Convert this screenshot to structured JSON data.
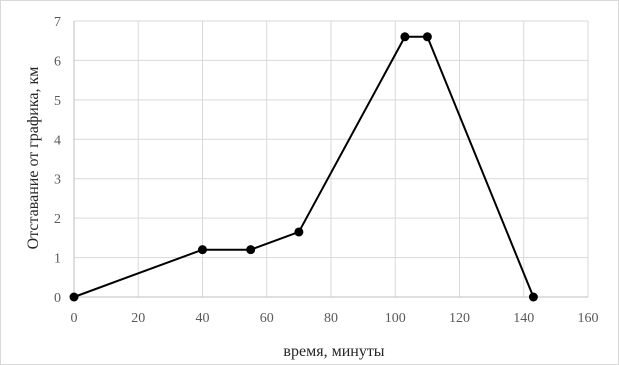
{
  "chart_data": {
    "type": "line",
    "title": "",
    "xlabel": "время, минуты",
    "ylabel": "Отставание  от графика,  км",
    "xlim": [
      0,
      160
    ],
    "ylim": [
      0,
      7
    ],
    "x_ticks": [
      "0",
      "20",
      "40",
      "60",
      "80",
      "100",
      "120",
      "140",
      "160"
    ],
    "y_ticks": [
      "0",
      "1",
      "2",
      "3",
      "4",
      "5",
      "6",
      "7"
    ],
    "grid": true,
    "legend": "none",
    "series": [
      {
        "x": [
          0,
          40,
          55,
          70,
          103,
          110,
          143
        ],
        "y": [
          0,
          1.2,
          1.2,
          1.65,
          6.6,
          6.6,
          0
        ],
        "color": "#000000",
        "marker": "circle"
      }
    ],
    "grid_color": "#d9d9d9",
    "axis_color": "#bfbfbf"
  }
}
